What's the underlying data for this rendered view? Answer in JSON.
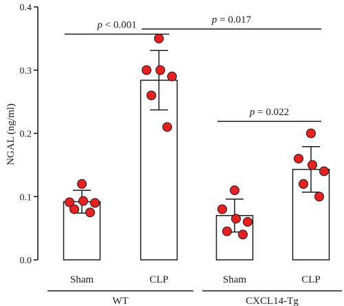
{
  "chart_data": {
    "type": "bar",
    "ylabel": "NGAL (ng/ml)",
    "ylim": [
      0,
      0.4
    ],
    "yticks": [
      "0.0",
      "0.1",
      "0.2",
      "0.3",
      "0.4"
    ],
    "categories": [
      "Sham",
      "CLP",
      "Sham",
      "CLP"
    ],
    "groups": [
      "WT",
      "CXCL14-Tg"
    ],
    "means": [
      0.092,
      0.284,
      0.07,
      0.143
    ],
    "errors": [
      0.018,
      0.047,
      0.026,
      0.036
    ],
    "points": [
      [
        0.12,
        0.091,
        0.093,
        0.09,
        0.08,
        0.075
      ],
      [
        0.35,
        0.3,
        0.3,
        0.29,
        0.26,
        0.21
      ],
      [
        0.11,
        0.08,
        0.065,
        0.06,
        0.045,
        0.04
      ],
      [
        0.2,
        0.16,
        0.15,
        0.14,
        0.12,
        0.1
      ]
    ],
    "point_color": "#e8201f",
    "annotations": [
      {
        "label": "p < 0.001",
        "from": 0,
        "to": 1,
        "y": 0.357
      },
      {
        "label": "p = 0.017",
        "from": 1,
        "to": 3,
        "y": 0.365
      },
      {
        "label": "p = 0.022",
        "from": 2,
        "to": 3,
        "y": 0.219
      }
    ]
  }
}
